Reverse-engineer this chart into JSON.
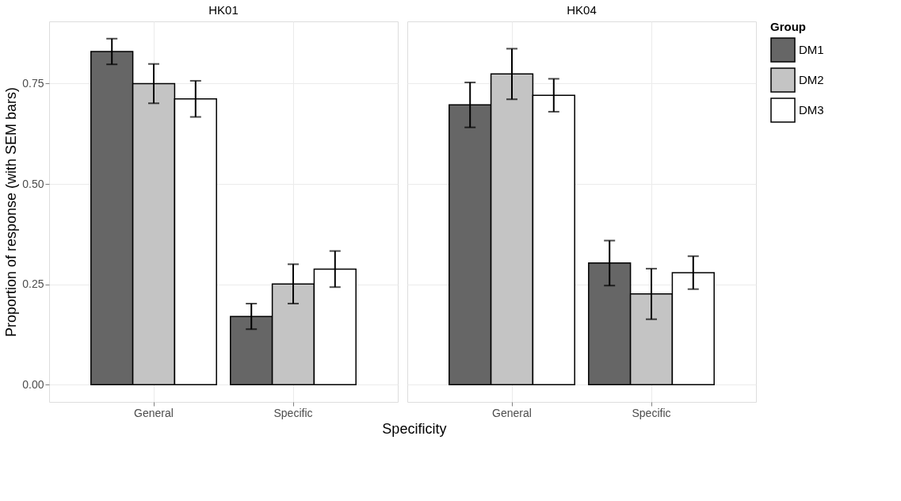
{
  "chart_data": [
    {
      "type": "bar",
      "title": "HK01",
      "xlabel": "Specificity",
      "ylabel": "Proportion of response (with SEM bars)",
      "categories": [
        "General",
        "Specific"
      ],
      "ylim": [
        -0.043,
        0.905
      ],
      "yticks": [
        {
          "value": 0,
          "label": "0.00"
        },
        {
          "value": 0.25,
          "label": "0.25"
        },
        {
          "value": 0.5,
          "label": "0.50"
        },
        {
          "value": 0.75,
          "label": "0.75"
        }
      ],
      "grid": true,
      "legend": false,
      "series": [
        {
          "color": "#666666",
          "values": [
            0.83,
            0.17
          ],
          "errors": [
            0.032,
            0.032
          ]
        },
        {
          "color": "#c4c4c4",
          "values": [
            0.75,
            0.251
          ],
          "errors": [
            0.049,
            0.049
          ]
        },
        {
          "color": "#ffffff",
          "values": [
            0.712,
            0.288
          ],
          "errors": [
            0.045,
            0.045
          ]
        }
      ]
    },
    {
      "type": "bar",
      "title": "HK04",
      "legend_title": "Group",
      "categories": [
        "General",
        "Specific"
      ],
      "ylim": [
        -0.043,
        0.905
      ],
      "grid": true,
      "legend": "right",
      "tick_labels": "x",
      "yticks": [
        0,
        0.25,
        0.5,
        0.75
      ],
      "series": [
        {
          "name": "DM1",
          "color": "#666666",
          "values": [
            0.697,
            0.303
          ],
          "errors": [
            0.056,
            0.056
          ]
        },
        {
          "name": "DM2",
          "color": "#c4c4c4",
          "values": [
            0.774,
            0.226
          ],
          "errors": [
            0.063,
            0.063
          ]
        },
        {
          "name": "DM3",
          "color": "#ffffff",
          "values": [
            0.721,
            0.279
          ],
          "errors": [
            0.041,
            0.041
          ]
        }
      ]
    }
  ]
}
